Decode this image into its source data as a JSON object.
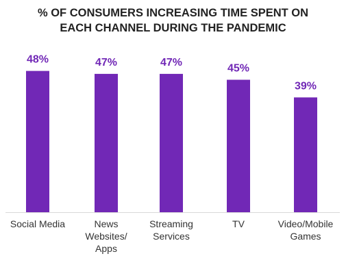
{
  "chart_data": {
    "type": "bar",
    "title": "% OF CONSUMERS INCREASING TIME SPENT ON\nEACH CHANNEL DURING THE PANDEMIC",
    "categories": [
      "Social Media",
      "News\nWebsites/\nApps",
      "Streaming\nServices",
      "TV",
      "Video/Mobile\nGames"
    ],
    "values": [
      48,
      47,
      47,
      45,
      39
    ],
    "value_labels": [
      "48%",
      "47%",
      "47%",
      "45%",
      "39%"
    ],
    "color": "#7128b6"
  }
}
